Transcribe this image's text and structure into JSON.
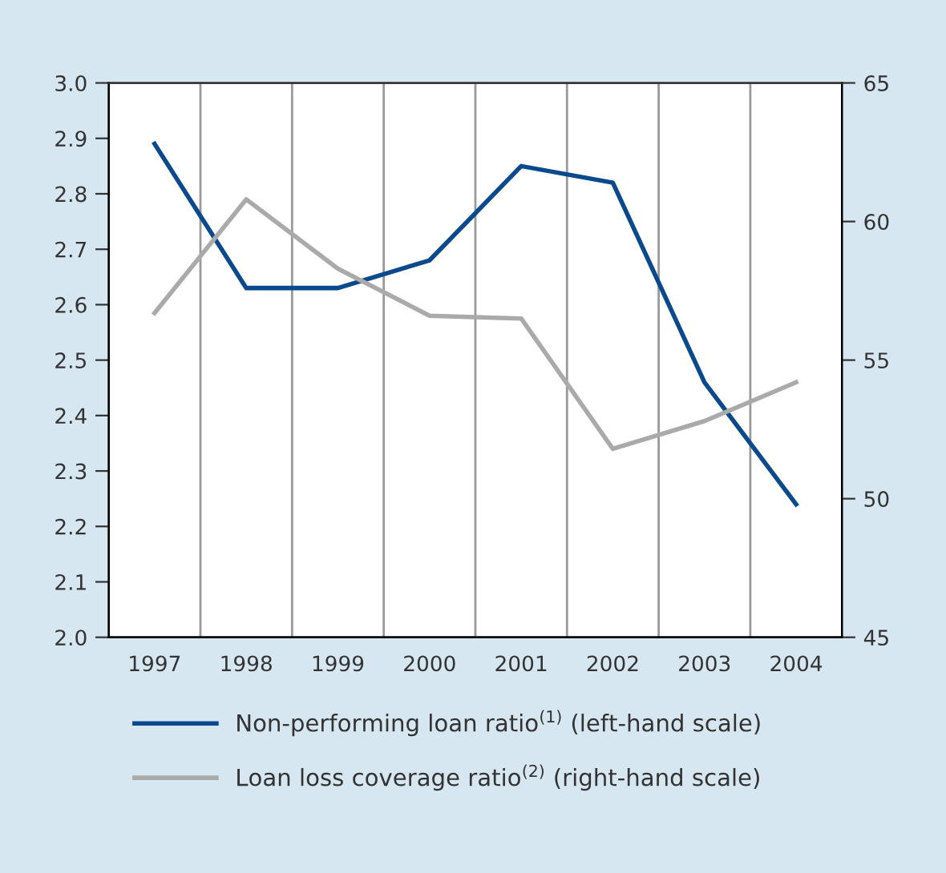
{
  "chart_data": {
    "type": "line",
    "categories": [
      "1997",
      "1998",
      "1999",
      "2000",
      "2001",
      "2002",
      "2003",
      "2004"
    ],
    "series": [
      {
        "name": "Non-performing loan ratio$^{(1)}$ (left-hand scale)",
        "color": "#0a4a8c",
        "values": [
          2.89,
          2.63,
          2.63,
          2.68,
          2.85,
          2.82,
          2.46,
          2.24
        ]
      },
      {
        "name": "Loan loss coverage ratio$^{(2)}$ (right-hand scale)",
        "color": "#aaaaaa",
        "axis": "y2",
        "values": [
          56.7,
          60.8,
          58.3,
          56.6,
          56.5,
          51.8,
          52.8,
          54.2
        ]
      }
    ],
    "ylim": [
      2.0,
      3.0
    ],
    "yticks": [
      {
        "value": 2.0,
        "label": "2.0"
      },
      {
        "value": 2.1,
        "label": "2.1"
      },
      {
        "value": 2.2,
        "label": "2.2"
      },
      {
        "value": 2.3,
        "label": "2.3"
      },
      {
        "value": 2.4,
        "label": "2.4"
      },
      {
        "value": 2.5,
        "label": "2.5"
      },
      {
        "value": 2.6,
        "label": "2.6"
      },
      {
        "value": 2.7,
        "label": "2.7"
      },
      {
        "value": 2.8,
        "label": "2.8"
      },
      {
        "value": 2.9,
        "label": "2.9"
      },
      {
        "value": 3.0,
        "label": "3.0"
      }
    ],
    "y2lim": [
      45,
      65
    ],
    "y2ticks": [
      45,
      50,
      55,
      60,
      65
    ],
    "grid": "x",
    "legend": "bottom",
    "marker": "none",
    "line_style": "solid"
  }
}
